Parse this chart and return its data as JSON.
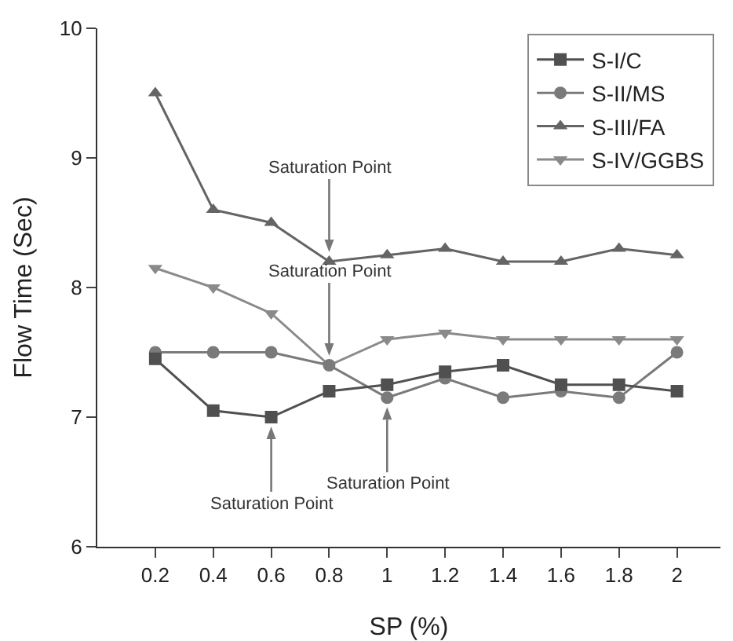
{
  "chart_data": {
    "type": "line",
    "xlabel": "SP (%)",
    "ylabel": "Flow Time (Sec)",
    "x": [
      0.2,
      0.4,
      0.6,
      0.8,
      1,
      1.2,
      1.4,
      1.6,
      1.8,
      2
    ],
    "xlim": [
      0,
      2.15
    ],
    "xticks": [
      0.2,
      0.4,
      0.6,
      0.8,
      1,
      1.2,
      1.4,
      1.6,
      1.8,
      2
    ],
    "ylim": [
      6,
      10
    ],
    "yticks": [
      6,
      7,
      8,
      9,
      10
    ],
    "grid": false,
    "legend": "top right",
    "series": [
      {
        "name": "S-I/C",
        "color": "#505050",
        "marker": "square",
        "values": [
          7.45,
          7.05,
          7.0,
          7.2,
          7.25,
          7.35,
          7.4,
          7.25,
          7.25,
          7.2
        ]
      },
      {
        "name": "S-II/MS",
        "color": "#7a7a7a",
        "marker": "circle",
        "values": [
          7.5,
          7.5,
          7.5,
          7.4,
          7.15,
          7.3,
          7.15,
          7.2,
          7.15,
          7.5
        ]
      },
      {
        "name": "S-III/FA",
        "color": "#646464",
        "marker": "triangle",
        "values": [
          9.5,
          8.6,
          8.5,
          8.2,
          8.25,
          8.3,
          8.2,
          8.2,
          8.3,
          8.25
        ]
      },
      {
        "name": "S-IV/GGBS",
        "color": "#8a8a8a",
        "marker": "triangle-down",
        "values": [
          8.15,
          8.0,
          7.8,
          7.4,
          7.6,
          7.65,
          7.6,
          7.6,
          7.6,
          7.6
        ]
      }
    ],
    "annotations": [
      {
        "text": "Saturation Point",
        "x": 0.8,
        "y": 8.2
      },
      {
        "text": "Saturation Point",
        "x": 0.8,
        "y": 7.4
      },
      {
        "text": "Saturation Point",
        "x": 0.6,
        "y": 7.0
      },
      {
        "text": "Saturation Point",
        "x": 1,
        "y": 7.15
      }
    ]
  }
}
